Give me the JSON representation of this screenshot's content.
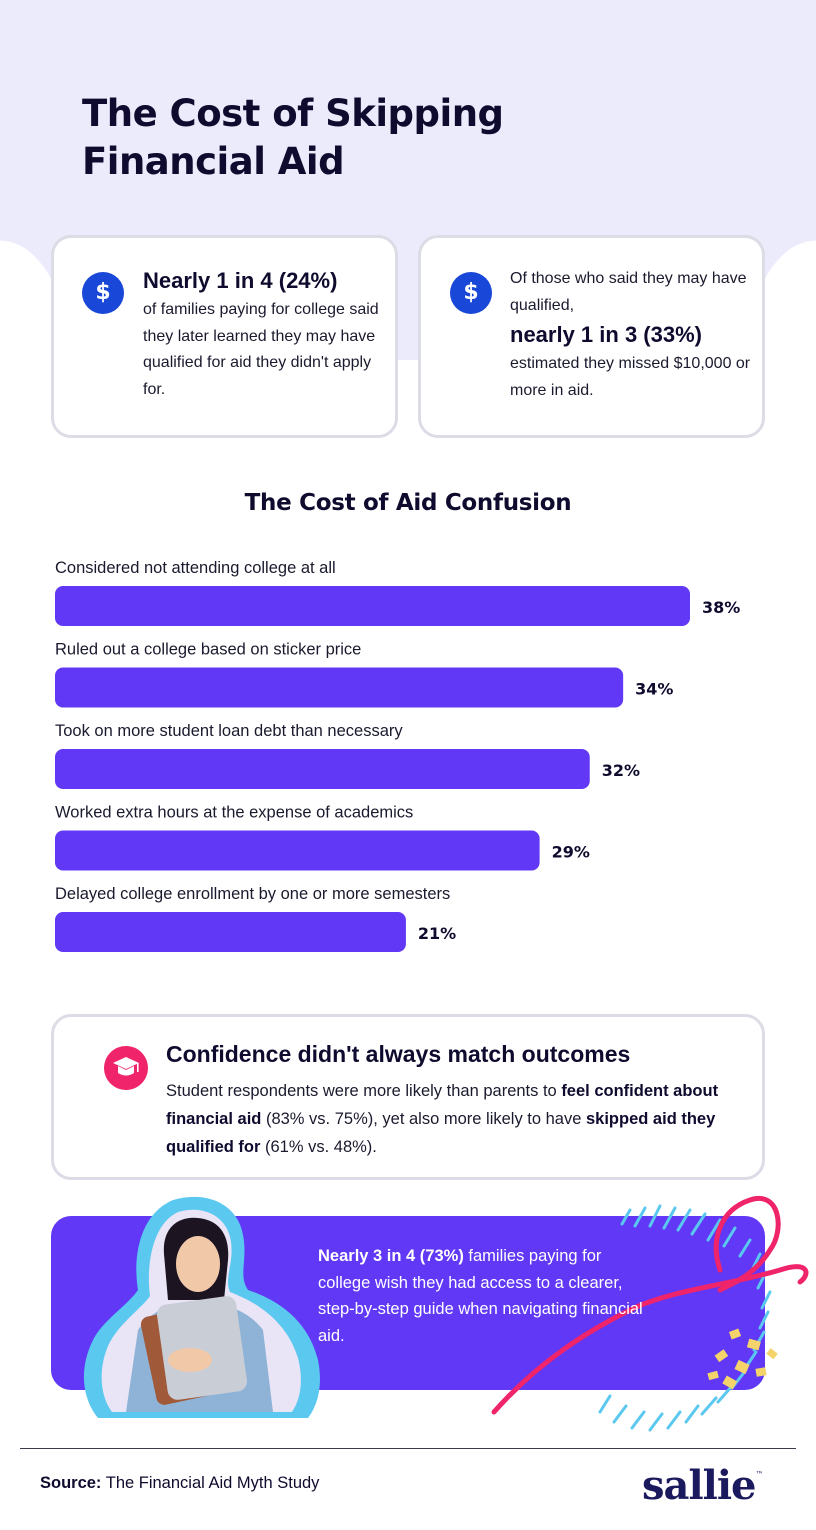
{
  "title": "The Cost of Skipping Financial Aid",
  "stat_cards": [
    {
      "icon": "dollar-icon",
      "big": "Nearly 1 in 4 (24%)",
      "text": "of families paying for college said they later learned they may have qualified for aid they didn't apply for."
    },
    {
      "icon": "dollar-icon",
      "lead": "Of those who said they may have qualified,",
      "big": "nearly 1 in 3 (33%)",
      "text": "estimated they missed $10,000 or more in aid."
    }
  ],
  "chart_data": {
    "type": "bar",
    "orientation": "horizontal",
    "title": "The Cost of Aid Confusion",
    "categories": [
      "Considered not attending college at all",
      "Ruled out a college based on sticker price",
      "Took on more student loan debt than necessary",
      "Worked extra hours at the expense of academics",
      "Delayed college enrollment by one or more semesters"
    ],
    "values": [
      38,
      34,
      32,
      29,
      21
    ],
    "value_labels": [
      "38%",
      "34%",
      "32%",
      "29%",
      "21%"
    ],
    "unit": "%",
    "xlim": [
      0,
      40
    ],
    "bar_color": "#6038f5",
    "grid": false
  },
  "confidence": {
    "icon": "graduation-cap-icon",
    "title": "Confidence didn't always match outcomes",
    "body_1": "Student respondents were more likely than parents to ",
    "bold_1": "feel confident about financial aid",
    "body_2": " (83% vs. 75%), yet also more likely to have ",
    "bold_2": "skipped aid they qualified for",
    "body_3": " (61% vs. 48%)."
  },
  "promo": {
    "bold": "Nearly 3 in 4 (73%)",
    "text": " families paying for college wish they had access to a clearer, step-by-step guide when navigating financial aid."
  },
  "footer": {
    "source_label": "Source:",
    "source_text": "The Financial Aid Myth Study",
    "logo": "sallie",
    "logo_tm": "™"
  },
  "colors": {
    "accent": "#6038f5",
    "dollar": "#1947d8",
    "pink": "#f0246a",
    "hero": "#ecebfb"
  }
}
